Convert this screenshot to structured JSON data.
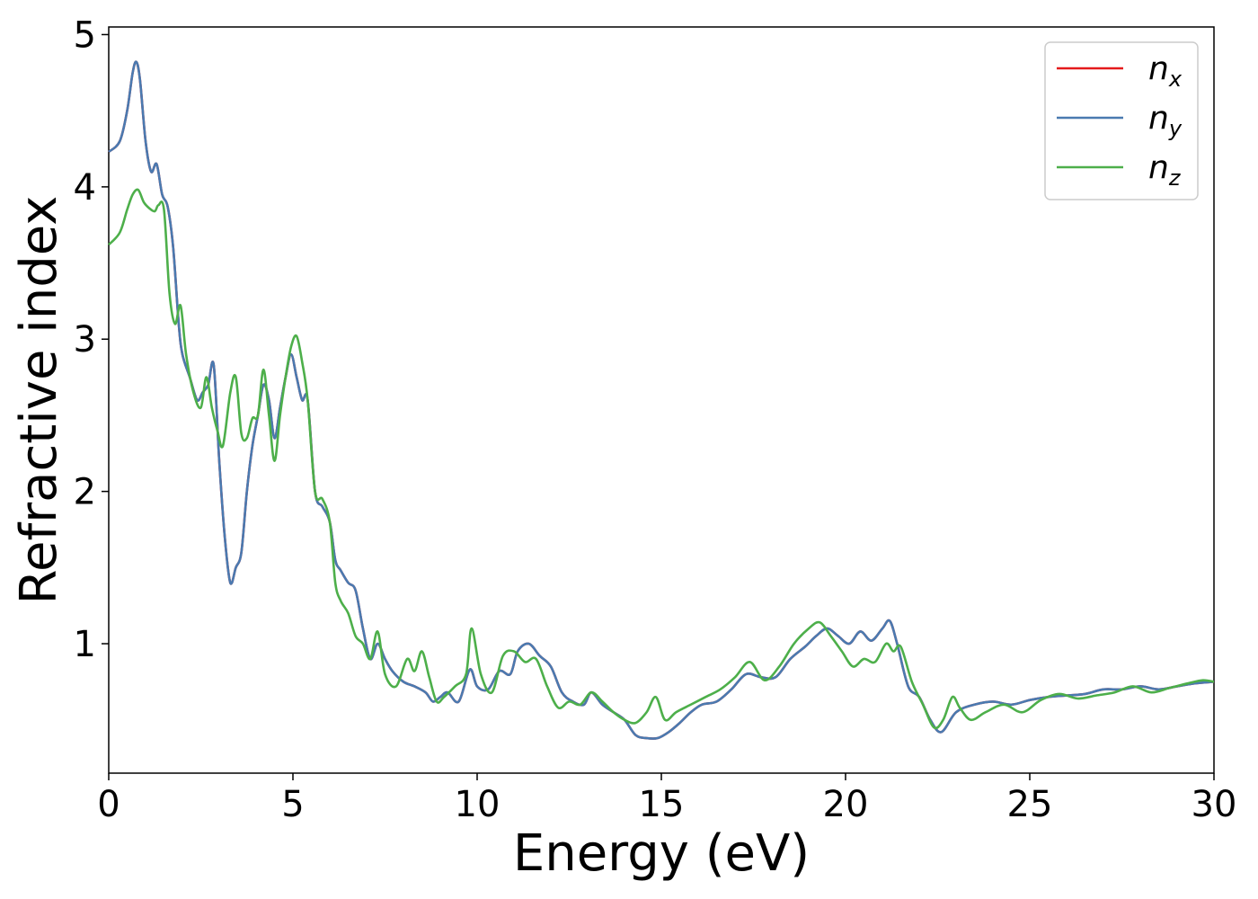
{
  "chart_data": {
    "type": "line",
    "xlabel": "Energy (eV)",
    "ylabel": "Refractive index",
    "xlim": [
      0,
      30
    ],
    "ylim": [
      0.15,
      5.05
    ],
    "xticks": [
      0,
      5,
      10,
      15,
      20,
      25,
      30
    ],
    "yticks": [
      1,
      2,
      3,
      4,
      5
    ],
    "grid": false,
    "legend_position": "top-right",
    "series": [
      {
        "name": "n_x",
        "legend_base": "n",
        "legend_sub": "x",
        "color": "#e41a1c",
        "x": [
          0,
          0.3,
          0.5,
          0.65,
          0.75,
          0.85,
          1.0,
          1.15,
          1.3,
          1.45,
          1.6,
          1.75,
          1.9,
          2.0,
          2.2,
          2.4,
          2.55,
          2.7,
          2.85,
          3.0,
          3.15,
          3.3,
          3.45,
          3.6,
          3.75,
          3.9,
          4.05,
          4.2,
          4.35,
          4.5,
          4.65,
          4.8,
          4.95,
          5.1,
          5.25,
          5.4,
          5.6,
          5.8,
          6.0,
          6.15,
          6.3,
          6.5,
          6.7,
          6.9,
          7.1,
          7.3,
          7.5,
          7.7,
          8.0,
          8.3,
          8.6,
          8.8,
          9.0,
          9.2,
          9.5,
          9.8,
          10.0,
          10.3,
          10.6,
          10.9,
          11.1,
          11.4,
          11.7,
          12.0,
          12.3,
          12.6,
          12.9,
          13.1,
          13.4,
          13.7,
          14.0,
          14.3,
          14.6,
          14.9,
          15.2,
          15.5,
          15.8,
          16.1,
          16.5,
          16.9,
          17.3,
          17.7,
          18.1,
          18.5,
          18.9,
          19.2,
          19.5,
          19.8,
          20.1,
          20.4,
          20.7,
          21.0,
          21.2,
          21.4,
          21.7,
          22.0,
          22.3,
          22.6,
          23.0,
          23.5,
          24.0,
          24.5,
          25.0,
          25.5,
          26.0,
          26.5,
          27.0,
          27.5,
          28.0,
          28.5,
          29.0,
          29.5,
          30.0
        ],
        "y": [
          4.23,
          4.3,
          4.5,
          4.75,
          4.82,
          4.7,
          4.3,
          4.1,
          4.15,
          3.95,
          3.87,
          3.6,
          3.1,
          2.9,
          2.75,
          2.6,
          2.65,
          2.7,
          2.83,
          2.2,
          1.7,
          1.4,
          1.5,
          1.6,
          2.0,
          2.3,
          2.5,
          2.7,
          2.6,
          2.35,
          2.55,
          2.75,
          2.9,
          2.75,
          2.6,
          2.6,
          2.0,
          1.9,
          1.8,
          1.55,
          1.48,
          1.4,
          1.35,
          1.1,
          0.9,
          1.0,
          0.9,
          0.82,
          0.75,
          0.72,
          0.68,
          0.62,
          0.65,
          0.68,
          0.62,
          0.83,
          0.72,
          0.7,
          0.82,
          0.8,
          0.95,
          1.0,
          0.92,
          0.85,
          0.68,
          0.62,
          0.6,
          0.68,
          0.6,
          0.55,
          0.5,
          0.4,
          0.38,
          0.38,
          0.42,
          0.48,
          0.55,
          0.6,
          0.62,
          0.7,
          0.8,
          0.78,
          0.78,
          0.9,
          0.98,
          1.05,
          1.1,
          1.05,
          1.0,
          1.08,
          1.02,
          1.1,
          1.15,
          1.0,
          0.72,
          0.65,
          0.5,
          0.42,
          0.55,
          0.6,
          0.62,
          0.6,
          0.63,
          0.65,
          0.66,
          0.67,
          0.7,
          0.7,
          0.72,
          0.7,
          0.72,
          0.74,
          0.75
        ]
      },
      {
        "name": "n_y",
        "legend_base": "n",
        "legend_sub": "y",
        "color": "#4a7ab0",
        "x": [
          0,
          0.3,
          0.5,
          0.65,
          0.75,
          0.85,
          1.0,
          1.15,
          1.3,
          1.45,
          1.6,
          1.75,
          1.9,
          2.0,
          2.2,
          2.4,
          2.55,
          2.7,
          2.85,
          3.0,
          3.15,
          3.3,
          3.45,
          3.6,
          3.75,
          3.9,
          4.05,
          4.2,
          4.35,
          4.5,
          4.65,
          4.8,
          4.95,
          5.1,
          5.25,
          5.4,
          5.6,
          5.8,
          6.0,
          6.15,
          6.3,
          6.5,
          6.7,
          6.9,
          7.1,
          7.3,
          7.5,
          7.7,
          8.0,
          8.3,
          8.6,
          8.8,
          9.0,
          9.2,
          9.5,
          9.8,
          10.0,
          10.3,
          10.6,
          10.9,
          11.1,
          11.4,
          11.7,
          12.0,
          12.3,
          12.6,
          12.9,
          13.1,
          13.4,
          13.7,
          14.0,
          14.3,
          14.6,
          14.9,
          15.2,
          15.5,
          15.8,
          16.1,
          16.5,
          16.9,
          17.3,
          17.7,
          18.1,
          18.5,
          18.9,
          19.2,
          19.5,
          19.8,
          20.1,
          20.4,
          20.7,
          21.0,
          21.2,
          21.4,
          21.7,
          22.0,
          22.3,
          22.6,
          23.0,
          23.5,
          24.0,
          24.5,
          25.0,
          25.5,
          26.0,
          26.5,
          27.0,
          27.5,
          28.0,
          28.5,
          29.0,
          29.5,
          30.0
        ],
        "y": [
          4.23,
          4.3,
          4.5,
          4.75,
          4.82,
          4.7,
          4.3,
          4.1,
          4.15,
          3.95,
          3.87,
          3.6,
          3.1,
          2.9,
          2.75,
          2.6,
          2.65,
          2.7,
          2.83,
          2.2,
          1.7,
          1.4,
          1.5,
          1.6,
          2.0,
          2.3,
          2.5,
          2.7,
          2.6,
          2.35,
          2.55,
          2.75,
          2.9,
          2.75,
          2.6,
          2.6,
          2.0,
          1.9,
          1.8,
          1.55,
          1.48,
          1.4,
          1.35,
          1.1,
          0.9,
          1.0,
          0.9,
          0.82,
          0.75,
          0.72,
          0.68,
          0.62,
          0.65,
          0.68,
          0.62,
          0.83,
          0.72,
          0.7,
          0.82,
          0.8,
          0.95,
          1.0,
          0.92,
          0.85,
          0.68,
          0.62,
          0.6,
          0.68,
          0.6,
          0.55,
          0.5,
          0.4,
          0.38,
          0.38,
          0.42,
          0.48,
          0.55,
          0.6,
          0.62,
          0.7,
          0.8,
          0.78,
          0.78,
          0.9,
          0.98,
          1.05,
          1.1,
          1.05,
          1.0,
          1.08,
          1.02,
          1.1,
          1.15,
          1.0,
          0.72,
          0.65,
          0.5,
          0.42,
          0.55,
          0.6,
          0.62,
          0.6,
          0.63,
          0.65,
          0.66,
          0.67,
          0.7,
          0.7,
          0.72,
          0.7,
          0.72,
          0.74,
          0.75
        ]
      },
      {
        "name": "n_z",
        "legend_base": "n",
        "legend_sub": "z",
        "color": "#4daf4a",
        "x": [
          0,
          0.3,
          0.5,
          0.65,
          0.8,
          0.95,
          1.1,
          1.25,
          1.35,
          1.5,
          1.65,
          1.8,
          1.95,
          2.1,
          2.3,
          2.5,
          2.65,
          2.8,
          2.95,
          3.1,
          3.3,
          3.45,
          3.6,
          3.75,
          3.9,
          4.05,
          4.2,
          4.35,
          4.5,
          4.65,
          4.8,
          4.95,
          5.1,
          5.25,
          5.4,
          5.6,
          5.8,
          6.0,
          6.15,
          6.3,
          6.5,
          6.7,
          6.9,
          7.1,
          7.3,
          7.5,
          7.8,
          8.1,
          8.3,
          8.5,
          8.7,
          8.9,
          9.1,
          9.4,
          9.7,
          9.85,
          10.1,
          10.4,
          10.7,
          11.0,
          11.3,
          11.6,
          11.9,
          12.2,
          12.5,
          12.8,
          13.1,
          13.4,
          13.7,
          14.0,
          14.3,
          14.6,
          14.85,
          15.1,
          15.4,
          15.8,
          16.2,
          16.6,
          17.0,
          17.4,
          17.8,
          18.2,
          18.6,
          19.0,
          19.3,
          19.6,
          19.9,
          20.2,
          20.5,
          20.8,
          21.1,
          21.3,
          21.5,
          21.8,
          22.1,
          22.4,
          22.65,
          22.9,
          23.1,
          23.4,
          23.8,
          24.3,
          24.8,
          25.3,
          25.8,
          26.3,
          26.8,
          27.3,
          27.8,
          28.3,
          28.8,
          29.3,
          29.7,
          30.0
        ],
        "y": [
          3.62,
          3.7,
          3.85,
          3.95,
          3.98,
          3.9,
          3.86,
          3.84,
          3.88,
          3.85,
          3.3,
          3.1,
          3.22,
          2.9,
          2.65,
          2.55,
          2.75,
          2.55,
          2.4,
          2.3,
          2.65,
          2.75,
          2.38,
          2.35,
          2.48,
          2.5,
          2.8,
          2.5,
          2.2,
          2.5,
          2.75,
          2.95,
          3.02,
          2.85,
          2.6,
          2.0,
          1.95,
          1.8,
          1.4,
          1.28,
          1.2,
          1.05,
          1.0,
          0.9,
          1.08,
          0.8,
          0.72,
          0.9,
          0.82,
          0.95,
          0.78,
          0.62,
          0.65,
          0.72,
          0.8,
          1.1,
          0.8,
          0.68,
          0.92,
          0.95,
          0.88,
          0.9,
          0.72,
          0.58,
          0.62,
          0.6,
          0.68,
          0.62,
          0.55,
          0.5,
          0.48,
          0.55,
          0.65,
          0.5,
          0.55,
          0.6,
          0.65,
          0.7,
          0.78,
          0.88,
          0.76,
          0.85,
          1.0,
          1.1,
          1.14,
          1.05,
          0.95,
          0.85,
          0.9,
          0.88,
          1.0,
          0.95,
          0.98,
          0.75,
          0.6,
          0.45,
          0.5,
          0.65,
          0.58,
          0.5,
          0.55,
          0.6,
          0.55,
          0.63,
          0.67,
          0.64,
          0.66,
          0.68,
          0.72,
          0.68,
          0.71,
          0.74,
          0.76,
          0.75
        ]
      }
    ]
  }
}
